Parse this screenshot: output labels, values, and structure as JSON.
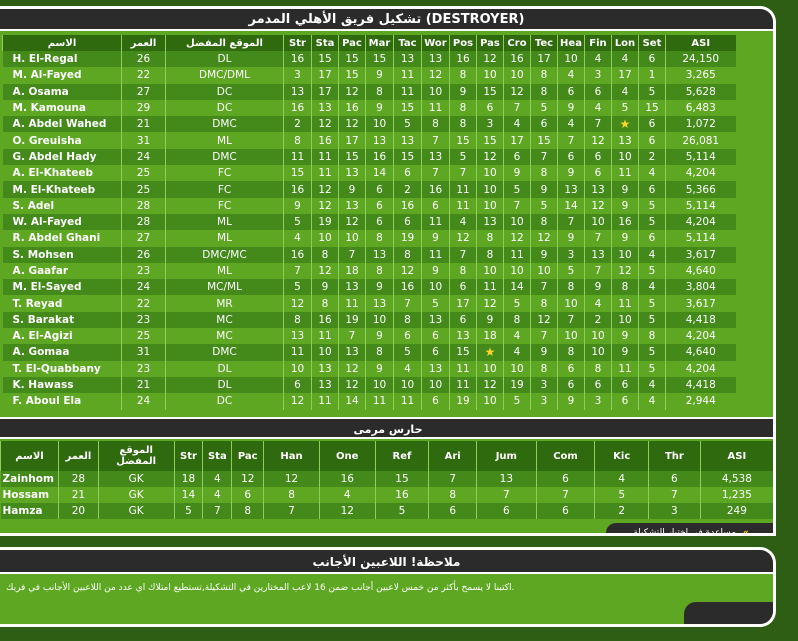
{
  "title": "تشكيل فريق الأهلي المدمر (DESTROYER)",
  "squad": {
    "headers": [
      "الاسم",
      "العمر",
      "الموقع المفضل",
      "Str",
      "Sta",
      "Pac",
      "Mar",
      "Tac",
      "Wor",
      "Pos",
      "Pas",
      "Cro",
      "Tec",
      "Hea",
      "Fin",
      "Lon",
      "Set",
      "ASI"
    ],
    "rows": [
      [
        "H. El-Regal",
        "26",
        "DL",
        "16",
        "15",
        "15",
        "15",
        "13",
        "13",
        "16",
        "12",
        "16",
        "17",
        "10",
        "4",
        "4",
        "6",
        "24,150"
      ],
      [
        "M. Al-Fayed",
        "22",
        "DMC/DML",
        "3",
        "17",
        "15",
        "9",
        "11",
        "12",
        "8",
        "10",
        "10",
        "8",
        "4",
        "3",
        "17",
        "1",
        "3,265"
      ],
      [
        "A. Osama",
        "27",
        "DC",
        "13",
        "17",
        "12",
        "8",
        "11",
        "10",
        "9",
        "15",
        "12",
        "8",
        "6",
        "6",
        "4",
        "5",
        "5,628"
      ],
      [
        "M. Kamouna",
        "29",
        "DC",
        "16",
        "13",
        "16",
        "9",
        "15",
        "11",
        "8",
        "6",
        "7",
        "5",
        "9",
        "4",
        "5",
        "15",
        "6,483"
      ],
      [
        "A. Abdel Wahed",
        "21",
        "DMC",
        "2",
        "12",
        "12",
        "10",
        "5",
        "8",
        "8",
        "3",
        "4",
        "6",
        "4",
        "7",
        "★",
        "6",
        "1,072"
      ],
      [
        "O. Greuisha",
        "31",
        "ML",
        "8",
        "16",
        "17",
        "13",
        "13",
        "7",
        "15",
        "15",
        "17",
        "15",
        "7",
        "12",
        "13",
        "6",
        "26,081"
      ],
      [
        "G. Abdel Hady",
        "24",
        "DMC",
        "11",
        "11",
        "15",
        "16",
        "15",
        "13",
        "5",
        "12",
        "6",
        "7",
        "6",
        "6",
        "10",
        "2",
        "5,114"
      ],
      [
        "A. El-Khateeb",
        "25",
        "FC",
        "15",
        "11",
        "13",
        "14",
        "6",
        "7",
        "7",
        "10",
        "9",
        "8",
        "9",
        "6",
        "11",
        "4",
        "4,204"
      ],
      [
        "M. El-Khateeb",
        "25",
        "FC",
        "16",
        "12",
        "9",
        "6",
        "2",
        "16",
        "11",
        "10",
        "5",
        "9",
        "13",
        "13",
        "9",
        "6",
        "5,366"
      ],
      [
        "S. Adel",
        "28",
        "FC",
        "9",
        "12",
        "13",
        "6",
        "16",
        "6",
        "11",
        "10",
        "7",
        "5",
        "14",
        "12",
        "9",
        "5",
        "5,114"
      ],
      [
        "W. Al-Fayed",
        "28",
        "ML",
        "5",
        "19",
        "12",
        "6",
        "6",
        "11",
        "4",
        "13",
        "10",
        "8",
        "7",
        "10",
        "16",
        "5",
        "4,204"
      ],
      [
        "R. Abdel Ghani",
        "27",
        "ML",
        "4",
        "10",
        "10",
        "8",
        "19",
        "9",
        "12",
        "8",
        "12",
        "12",
        "9",
        "7",
        "9",
        "6",
        "5,114"
      ],
      [
        "S. Mohsen",
        "26",
        "DMC/MC",
        "16",
        "8",
        "7",
        "13",
        "8",
        "11",
        "7",
        "8",
        "11",
        "9",
        "3",
        "13",
        "10",
        "4",
        "3,617"
      ],
      [
        "A. Gaafar",
        "23",
        "ML",
        "7",
        "12",
        "18",
        "8",
        "12",
        "9",
        "8",
        "10",
        "10",
        "10",
        "5",
        "7",
        "12",
        "5",
        "4,640"
      ],
      [
        "M. El-Sayed",
        "24",
        "MC/ML",
        "5",
        "9",
        "13",
        "9",
        "16",
        "10",
        "6",
        "11",
        "14",
        "7",
        "8",
        "9",
        "8",
        "4",
        "3,804"
      ],
      [
        "T. Reyad",
        "22",
        "MR",
        "12",
        "8",
        "11",
        "13",
        "7",
        "5",
        "17",
        "12",
        "5",
        "8",
        "10",
        "4",
        "11",
        "5",
        "3,617"
      ],
      [
        "S. Barakat",
        "23",
        "MC",
        "8",
        "16",
        "19",
        "10",
        "8",
        "13",
        "6",
        "9",
        "8",
        "12",
        "7",
        "2",
        "10",
        "5",
        "4,418"
      ],
      [
        "A. El-Agizi",
        "25",
        "MC",
        "13",
        "11",
        "7",
        "9",
        "6",
        "6",
        "13",
        "18",
        "4",
        "7",
        "10",
        "10",
        "9",
        "8",
        "4,204"
      ],
      [
        "A. Gomaa",
        "31",
        "DMC",
        "11",
        "10",
        "13",
        "8",
        "5",
        "6",
        "15",
        "★",
        "4",
        "9",
        "8",
        "10",
        "9",
        "5",
        "4,640"
      ],
      [
        "T. El-Quabbany",
        "23",
        "DL",
        "10",
        "13",
        "12",
        "9",
        "4",
        "13",
        "11",
        "10",
        "10",
        "8",
        "6",
        "8",
        "11",
        "5",
        "4,204"
      ],
      [
        "K. Hawass",
        "21",
        "DL",
        "6",
        "13",
        "12",
        "10",
        "10",
        "10",
        "11",
        "12",
        "19",
        "3",
        "6",
        "6",
        "6",
        "4",
        "4,418"
      ],
      [
        "F. Aboul Ela",
        "24",
        "DC",
        "12",
        "11",
        "14",
        "11",
        "11",
        "6",
        "19",
        "10",
        "5",
        "3",
        "9",
        "3",
        "6",
        "4",
        "2,944"
      ]
    ]
  },
  "gk": {
    "section_title": "حارس مرمى",
    "headers": [
      "الاسم",
      "العمر",
      "الموقع المفضل",
      "Str",
      "Sta",
      "Pac",
      "Han",
      "One",
      "Ref",
      "Ari",
      "Jum",
      "Com",
      "Kic",
      "Thr",
      "ASI"
    ],
    "rows": [
      [
        "Zainhom",
        "28",
        "GK",
        "18",
        "4",
        "12",
        "12",
        "16",
        "15",
        "7",
        "13",
        "6",
        "4",
        "6",
        "4,538"
      ],
      [
        "Hossam",
        "21",
        "GK",
        "14",
        "4",
        "6",
        "8",
        "4",
        "16",
        "8",
        "7",
        "7",
        "5",
        "7",
        "1,235"
      ],
      [
        "Hamza",
        "20",
        "GK",
        "5",
        "7",
        "8",
        "7",
        "12",
        "5",
        "6",
        "6",
        "6",
        "2",
        "3",
        "249"
      ]
    ]
  },
  "footer_link": "مساعدة في اختيار التشكيلة",
  "note": {
    "title": "ملاحظة! اللاعبين الأجانب",
    "text": "اكتبنا لا يسمح بأكثر من خمس لاعبين أجانب ضمن 16 لاعب المختارين في التشكيلة,تستطيع امتلاك اي عدد من اللاعبين الأجانب في فريك."
  },
  "colors": {
    "panel": "#5ea722",
    "row_dark": "#438a1a",
    "bar": "#2b2b2b",
    "star": "#ffd52a"
  }
}
